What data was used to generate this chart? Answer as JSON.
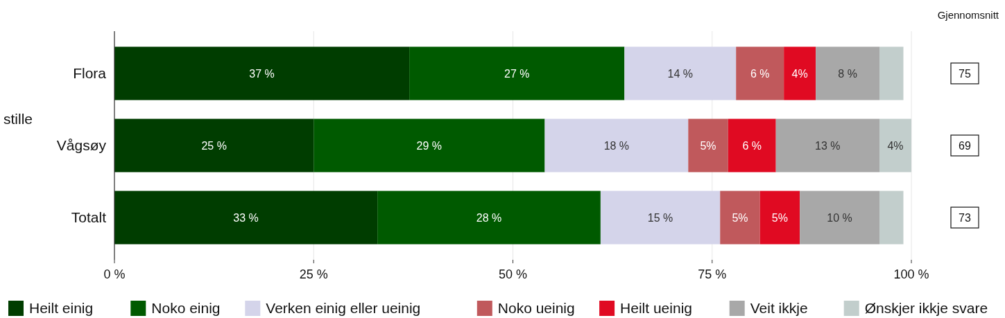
{
  "chart_data": {
    "type": "bar",
    "orientation": "horizontal",
    "stacked": true,
    "ylabel": "stille",
    "categories": [
      "Flora",
      "Vågsøy",
      "Totalt"
    ],
    "series": [
      {
        "name": "Heilt einig",
        "color": "#003d00",
        "values": [
          37,
          25,
          33
        ],
        "value_labels": [
          "37 %",
          "25 %",
          "33 %"
        ]
      },
      {
        "name": "Noko einig",
        "color": "#005a00",
        "values": [
          27,
          29,
          28
        ],
        "value_labels": [
          "27 %",
          "29 %",
          "28 %"
        ]
      },
      {
        "name": "Verken einig eller ueinig",
        "color": "#d4d4ea",
        "values": [
          14,
          18,
          15
        ],
        "value_labels": [
          "14 %",
          "18 %",
          "15 %"
        ]
      },
      {
        "name": "Noko ueinig",
        "color": "#c0595c",
        "values": [
          6,
          5,
          5
        ],
        "value_labels": [
          "6 %",
          "5%",
          "5%"
        ]
      },
      {
        "name": "Heilt ueinig",
        "color": "#e00a22",
        "values": [
          4,
          6,
          5
        ],
        "value_labels": [
          "4%",
          "6 %",
          "5%"
        ]
      },
      {
        "name": "Veit ikkje",
        "color": "#a8a8a8",
        "values": [
          8,
          13,
          10
        ],
        "value_labels": [
          "8 %",
          "13 %",
          "10 %"
        ]
      },
      {
        "name": "Ønskjer ikkje svare",
        "color": "#c2cecc",
        "values": [
          3,
          4,
          3
        ],
        "value_labels": [
          null,
          "4%",
          null
        ]
      }
    ],
    "xlim": [
      0,
      100
    ],
    "xticks": [
      {
        "value": 0,
        "label": "0 %"
      },
      {
        "value": 25,
        "label": "25 %"
      },
      {
        "value": 50,
        "label": "50 %"
      },
      {
        "value": 75,
        "label": "75 %"
      },
      {
        "value": 100,
        "label": "100 %"
      }
    ],
    "grid": "x",
    "legend": "bottom",
    "annotations": [
      "Gjennomsnitt",
      "75",
      "69",
      "73"
    ]
  }
}
